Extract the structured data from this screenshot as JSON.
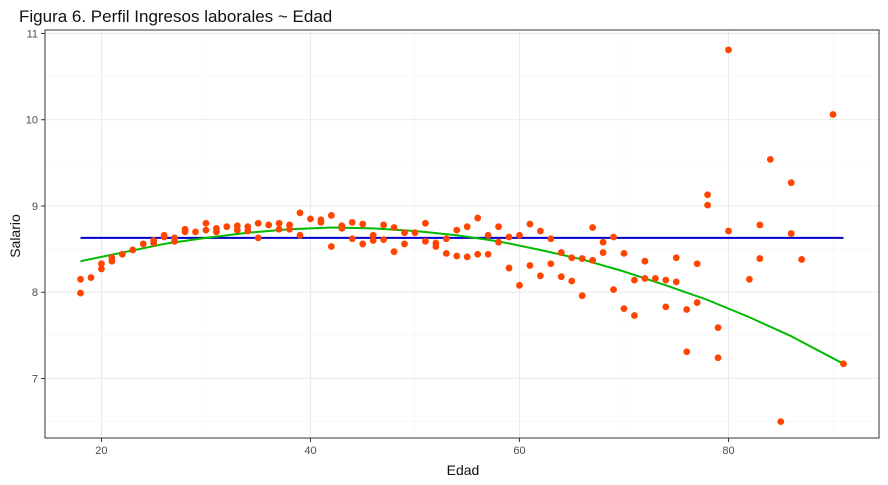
{
  "chart_data": {
    "type": "scatter",
    "title": "Figura 6. Perfil Ingresos laborales ~ Edad",
    "xlabel": "Edad",
    "ylabel": "Salario",
    "xlim": [
      14.6,
      94.4
    ],
    "ylim": [
      6.31,
      11.04
    ],
    "x_ticks": [
      20,
      40,
      60,
      80
    ],
    "y_ticks": [
      7,
      8,
      9,
      10,
      11
    ],
    "grid": true,
    "legend": "none",
    "colors": {
      "points": "#FF4500",
      "mean_line": "#0000CD",
      "fit_curve": "#00BB00",
      "grid_major": "#EBEBEB",
      "grid_minor": "#F5F5F5",
      "panel_border": "#333333"
    },
    "points": [
      [
        18,
        8.15
      ],
      [
        18,
        7.99
      ],
      [
        19,
        8.17
      ],
      [
        20,
        8.27
      ],
      [
        20,
        8.33
      ],
      [
        21,
        8.36
      ],
      [
        21,
        8.4
      ],
      [
        22,
        8.44
      ],
      [
        23,
        8.49
      ],
      [
        24,
        8.56
      ],
      [
        25,
        8.57
      ],
      [
        25,
        8.6
      ],
      [
        26,
        8.64
      ],
      [
        26,
        8.66
      ],
      [
        27,
        8.59
      ],
      [
        27,
        8.63
      ],
      [
        28,
        8.7
      ],
      [
        28,
        8.73
      ],
      [
        29,
        8.7
      ],
      [
        30,
        8.72
      ],
      [
        30,
        8.8
      ],
      [
        31,
        8.7
      ],
      [
        31,
        8.74
      ],
      [
        32,
        8.76
      ],
      [
        33,
        8.77
      ],
      [
        33,
        8.72
      ],
      [
        34,
        8.76
      ],
      [
        34,
        8.71
      ],
      [
        35,
        8.8
      ],
      [
        35,
        8.63
      ],
      [
        36,
        8.78
      ],
      [
        37,
        8.8
      ],
      [
        37,
        8.73
      ],
      [
        38,
        8.73
      ],
      [
        38,
        8.78
      ],
      [
        39,
        8.92
      ],
      [
        39,
        8.66
      ],
      [
        40,
        8.85
      ],
      [
        41,
        8.81
      ],
      [
        41,
        8.84
      ],
      [
        42,
        8.89
      ],
      [
        42,
        8.53
      ],
      [
        43,
        8.77
      ],
      [
        43,
        8.74
      ],
      [
        44,
        8.81
      ],
      [
        44,
        8.62
      ],
      [
        45,
        8.79
      ],
      [
        45,
        8.56
      ],
      [
        46,
        8.6
      ],
      [
        46,
        8.66
      ],
      [
        47,
        8.78
      ],
      [
        47,
        8.61
      ],
      [
        48,
        8.75
      ],
      [
        48,
        8.47
      ],
      [
        49,
        8.69
      ],
      [
        49,
        8.56
      ],
      [
        50,
        8.69
      ],
      [
        51,
        8.59
      ],
      [
        51,
        8.8
      ],
      [
        52,
        8.53
      ],
      [
        52,
        8.57
      ],
      [
        53,
        8.45
      ],
      [
        53,
        8.62
      ],
      [
        54,
        8.72
      ],
      [
        54,
        8.42
      ],
      [
        55,
        8.41
      ],
      [
        55,
        8.76
      ],
      [
        56,
        8.86
      ],
      [
        56,
        8.44
      ],
      [
        57,
        8.66
      ],
      [
        57,
        8.44
      ],
      [
        58,
        8.76
      ],
      [
        58,
        8.58
      ],
      [
        59,
        8.64
      ],
      [
        59,
        8.28
      ],
      [
        60,
        8.66
      ],
      [
        60,
        8.08
      ],
      [
        61,
        8.31
      ],
      [
        61,
        8.79
      ],
      [
        62,
        8.71
      ],
      [
        62,
        8.19
      ],
      [
        63,
        8.62
      ],
      [
        63,
        8.33
      ],
      [
        64,
        8.46
      ],
      [
        64,
        8.18
      ],
      [
        65,
        8.4
      ],
      [
        65,
        8.13
      ],
      [
        66,
        8.39
      ],
      [
        66,
        7.96
      ],
      [
        67,
        8.75
      ],
      [
        67,
        8.37
      ],
      [
        68,
        8.58
      ],
      [
        68,
        8.46
      ],
      [
        69,
        8.64
      ],
      [
        69,
        8.03
      ],
      [
        70,
        8.45
      ],
      [
        70,
        7.81
      ],
      [
        71,
        8.14
      ],
      [
        71,
        7.73
      ],
      [
        72,
        8.16
      ],
      [
        72,
        8.36
      ],
      [
        73,
        8.16
      ],
      [
        74,
        8.14
      ],
      [
        74,
        7.83
      ],
      [
        75,
        8.12
      ],
      [
        75,
        8.4
      ],
      [
        76,
        7.31
      ],
      [
        76,
        7.8
      ],
      [
        77,
        7.88
      ],
      [
        77,
        8.33
      ],
      [
        78,
        9.13
      ],
      [
        78,
        9.01
      ],
      [
        79,
        7.59
      ],
      [
        79,
        7.24
      ],
      [
        80,
        10.81
      ],
      [
        80,
        8.71
      ],
      [
        82,
        8.15
      ],
      [
        83,
        8.78
      ],
      [
        83,
        8.39
      ],
      [
        84,
        9.54
      ],
      [
        85,
        6.5
      ],
      [
        86,
        9.27
      ],
      [
        86,
        8.68
      ],
      [
        87,
        8.38
      ],
      [
        90,
        10.06
      ],
      [
        91,
        7.17
      ]
    ],
    "mean_line": {
      "y": 8.63,
      "x": [
        18,
        91
      ]
    },
    "fit_curve": {
      "x": [
        18,
        22,
        26,
        30,
        34,
        38,
        42,
        46,
        50,
        54,
        58,
        62,
        66,
        70,
        74,
        78,
        82,
        86,
        91
      ],
      "y": [
        8.36,
        8.46,
        8.56,
        8.63,
        8.69,
        8.73,
        8.75,
        8.74,
        8.71,
        8.66,
        8.59,
        8.49,
        8.38,
        8.24,
        8.08,
        7.91,
        7.71,
        7.49,
        7.17
      ]
    }
  }
}
